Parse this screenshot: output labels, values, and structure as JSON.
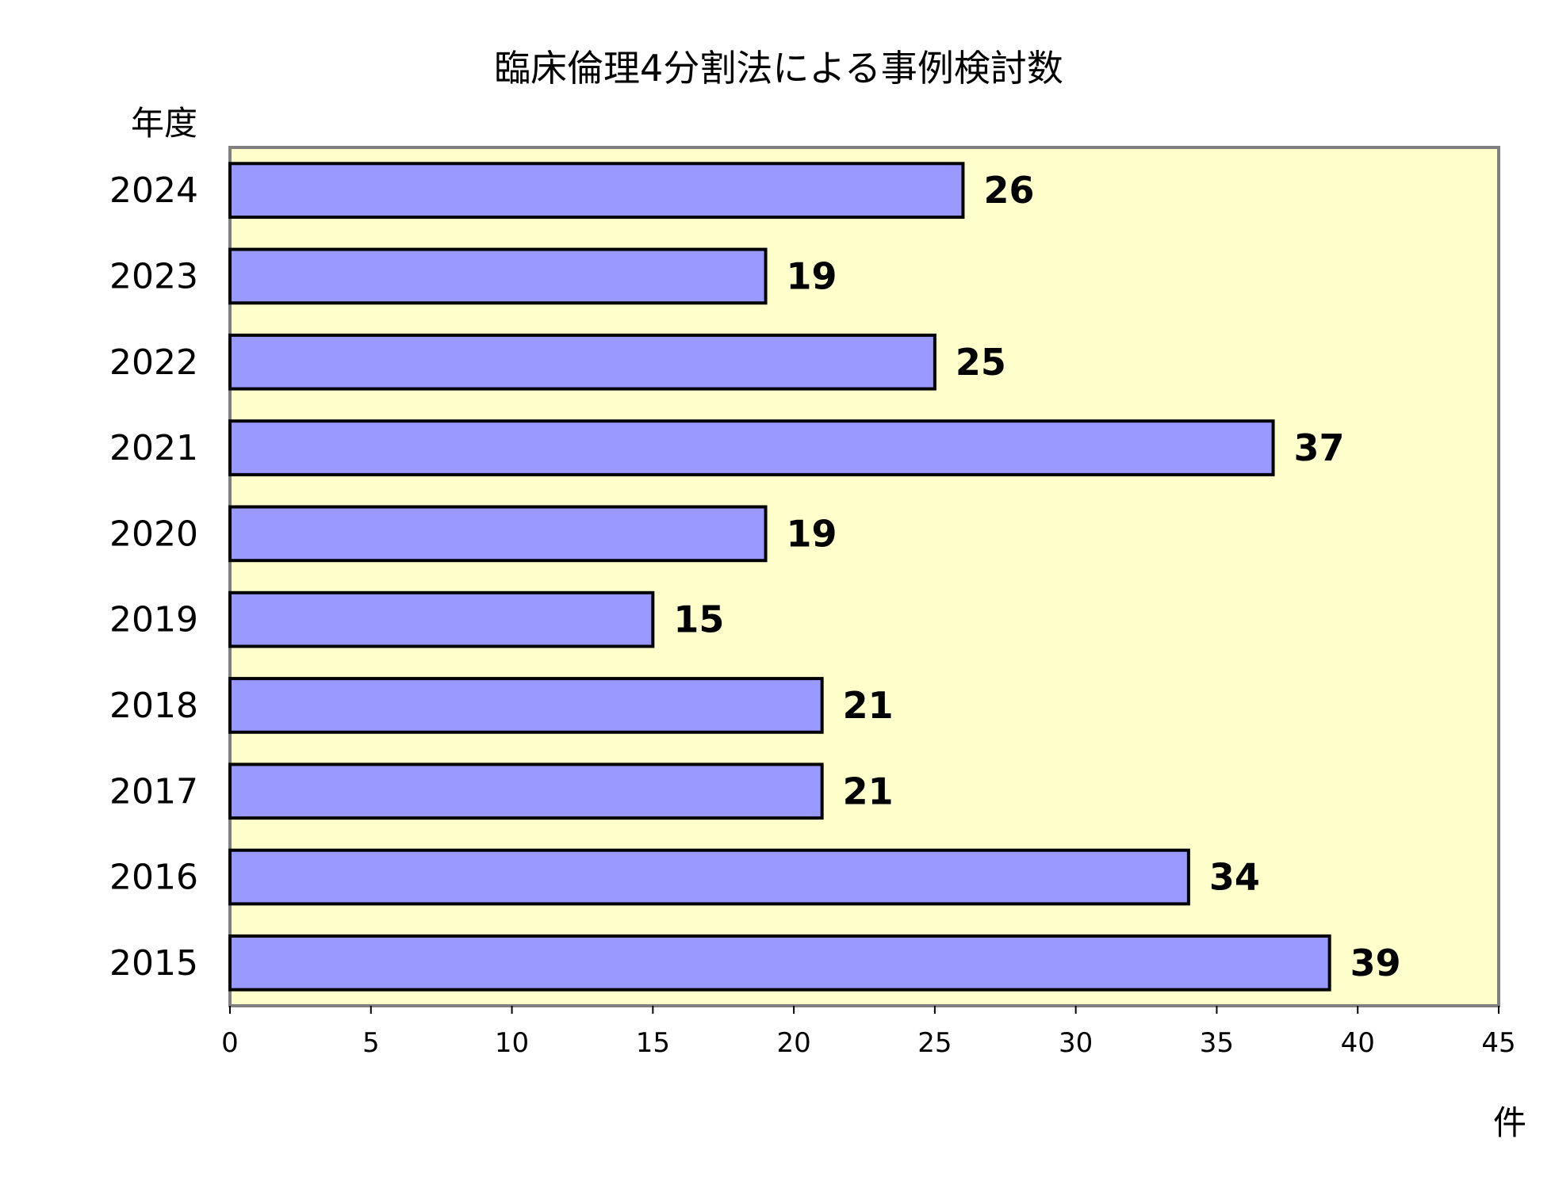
{
  "chart_data": {
    "type": "bar",
    "orientation": "horizontal",
    "title": "臨床倫理4分割法による事例検討数",
    "category_axis_title": "年度",
    "value_axis_title": "件",
    "categories": [
      "2024",
      "2023",
      "2022",
      "2021",
      "2020",
      "2019",
      "2018",
      "2017",
      "2016",
      "2015"
    ],
    "values": [
      26,
      19,
      25,
      37,
      19,
      15,
      21,
      21,
      34,
      39
    ],
    "xlim": [
      0,
      45
    ],
    "xticks": [
      0,
      5,
      10,
      15,
      20,
      25,
      30,
      35,
      40,
      45
    ],
    "grid": false,
    "legend": "none",
    "data_labels": true,
    "colors": {
      "bar_fill": "#9999ff",
      "bar_stroke": "#000000",
      "plot_background": "#ffffcc",
      "plot_border": "#808080"
    }
  }
}
